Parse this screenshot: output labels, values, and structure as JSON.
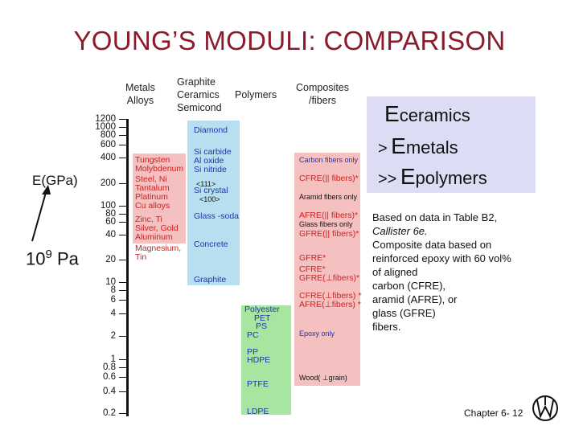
{
  "title": "YOUNG’S MODULI:  COMPARISON",
  "column_headers": {
    "metals": "Metals\nAlloys",
    "graphite": "Graphite\nCeramics\nSemicond",
    "polymers": "Polymers",
    "composites": "Composites\n/fibers"
  },
  "axis": {
    "label": "E(GPa)",
    "unit_base": "10",
    "unit_exp": "9",
    "unit_tail": "Pa",
    "ticks": [
      "1200",
      "1000",
      "800",
      "600",
      "400",
      "200",
      "100",
      "80",
      "60",
      "40",
      "20",
      "10",
      "8",
      "6",
      "4",
      "2",
      "1",
      "0.8",
      "0.6",
      "0.4",
      "0.2"
    ]
  },
  "metals": [
    "Tungsten",
    "Molybdenum",
    "Steel, Ni",
    "Tantalum",
    "Platinum",
    "Cu alloys",
    "Zinc, Ti",
    "Silver, Gold",
    "Aluminum",
    "Magnesium,",
    "Tin"
  ],
  "ceramics": [
    "Diamond",
    "Si carbide",
    "Al oxide",
    "Si nitride",
    "<111>",
    "Si crystal",
    "<100>",
    "Glass -soda",
    "Concrete",
    "Graphite"
  ],
  "polymers": [
    "Polyester",
    "PET",
    "PS",
    "PC",
    "PP",
    "HDPE",
    "PTFE",
    "LDPE"
  ],
  "composites": [
    "Carbon  fibers only",
    "CFRE(|| fibers)*",
    "Aramid fibers only",
    "AFRE(|| fibers)*",
    "Glass fibers only",
    "GFRE(|| fibers)*",
    "GFRE*",
    "CFRE*",
    "GFRE(⊥fibers)*",
    "CFRE(⊥fibers) *",
    "AFRE(⊥fibers) *",
    "Epoxy only",
    "Wood( ⊥grain)"
  ],
  "equation": {
    "E": "E",
    "sub1": "ceramics",
    "gt": ">",
    "sub2": "metals",
    "gtgt": ">>",
    "sub3": "polymers"
  },
  "note": {
    "l1": "Based on data in Table B2,",
    "l2": "Callister 6e.",
    "l3": "Composite data based on",
    "l4": "reinforced epoxy with 60 vol%",
    "l5": "of aligned",
    "l6": "carbon (CFRE),",
    "l7": "aramid (AFRE), or",
    "l8": "glass (GFRE)",
    "l9": "fibers."
  },
  "footer": "Chapter 6-  12",
  "colors": {
    "title": "#8b1a2b",
    "metals": "#f4c0c0",
    "ceramics": "#b6e0f0",
    "polymers": "#a6e6a0",
    "composites": "#f4c0c0",
    "box": "#dcdcf5"
  }
}
